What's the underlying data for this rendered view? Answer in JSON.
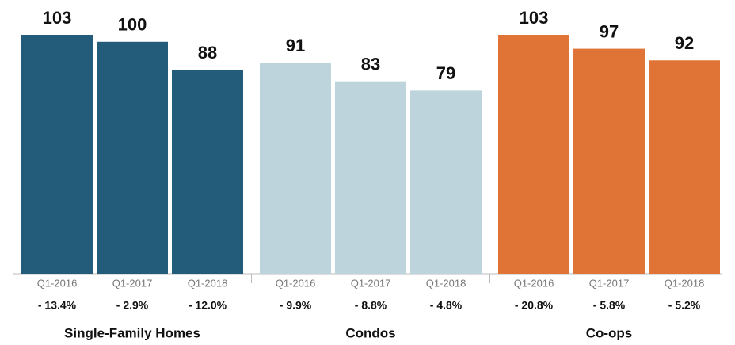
{
  "chart_data": {
    "type": "bar",
    "groups": [
      {
        "name": "Single-Family Homes",
        "color": "#235b7b",
        "categories": [
          "Q1-2016",
          "Q1-2017",
          "Q1-2018"
        ],
        "values": [
          103,
          100,
          88
        ],
        "changes": [
          "- 13.4%",
          "- 2.9%",
          "- 12.0%"
        ]
      },
      {
        "name": "Condos",
        "color": "#bdd4dc",
        "categories": [
          "Q1-2016",
          "Q1-2017",
          "Q1-2018"
        ],
        "values": [
          91,
          83,
          79
        ],
        "changes": [
          "- 9.9%",
          "- 8.8%",
          "- 4.8%"
        ]
      },
      {
        "name": "Co-ops",
        "color": "#e07436",
        "categories": [
          "Q1-2016",
          "Q1-2017",
          "Q1-2018"
        ],
        "values": [
          103,
          97,
          92
        ],
        "changes": [
          "- 20.8%",
          "- 5.8%",
          "- 5.2%"
        ]
      }
    ]
  }
}
